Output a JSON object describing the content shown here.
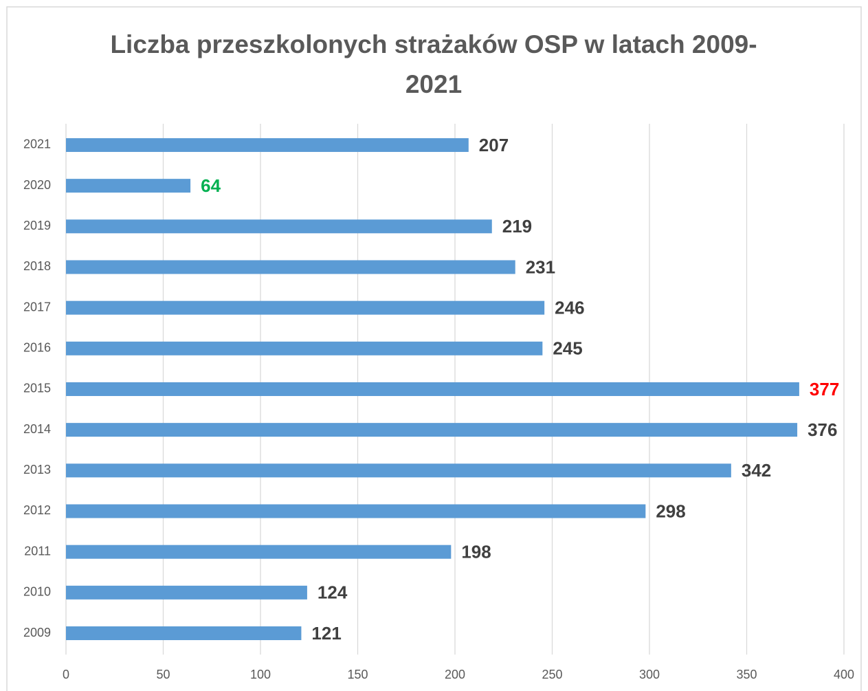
{
  "chart_data": {
    "type": "hbar",
    "title": "Liczba przeszkolonych strażaków OSP w latach 2009-2021",
    "categories": [
      "2009",
      "2010",
      "2011",
      "2012",
      "2013",
      "2014",
      "2015",
      "2016",
      "2017",
      "2018",
      "2019",
      "2020",
      "2021"
    ],
    "values": [
      121,
      124,
      198,
      298,
      342,
      376,
      377,
      245,
      246,
      231,
      219,
      64,
      207
    ],
    "value_label_colors": [
      "#404040",
      "#404040",
      "#404040",
      "#404040",
      "#404040",
      "#404040",
      "#ff0000",
      "#404040",
      "#404040",
      "#404040",
      "#404040",
      "#00b050",
      "#404040"
    ],
    "color": "#5b9bd5",
    "xlim": [
      0,
      400
    ],
    "xticks": [
      0,
      50,
      100,
      150,
      200,
      250,
      300,
      350,
      400
    ],
    "grid": true
  }
}
